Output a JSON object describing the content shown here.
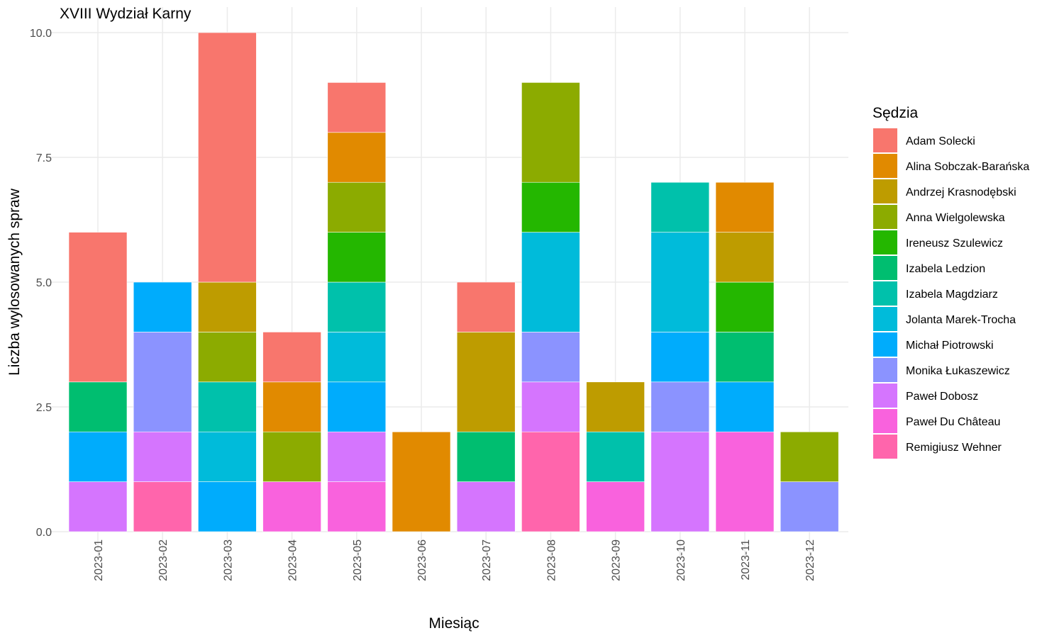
{
  "chart_data": {
    "type": "bar",
    "stacked": true,
    "title": "XVIII Wydział Karny",
    "xlabel": "Miesiąc",
    "ylabel": "Liczba wylosowanych spraw",
    "ylim": [
      0,
      10
    ],
    "yticks": [
      "0.0",
      "2.5",
      "5.0",
      "7.5",
      "10.0"
    ],
    "grid": true,
    "legend_title": "Sędzia",
    "legend_position": "right",
    "categories": [
      "2023-01",
      "2023-02",
      "2023-03",
      "2023-04",
      "2023-05",
      "2023-06",
      "2023-07",
      "2023-08",
      "2023-09",
      "2023-10",
      "2023-11",
      "2023-12"
    ],
    "series": [
      {
        "name": "Adam Solecki",
        "color": "#F8766D",
        "values": [
          3,
          0,
          5,
          1,
          1,
          0,
          1,
          0,
          0,
          0,
          0,
          0
        ]
      },
      {
        "name": "Alina Sobczak-Barańska",
        "color": "#E18A00",
        "values": [
          0,
          0,
          0,
          1,
          1,
          2,
          0,
          0,
          0,
          0,
          1,
          0
        ]
      },
      {
        "name": "Andrzej Krasnodębski",
        "color": "#BE9C00",
        "values": [
          0,
          0,
          1,
          0,
          0,
          0,
          2,
          0,
          1,
          0,
          1,
          0
        ]
      },
      {
        "name": "Anna Wielgolewska",
        "color": "#8CAB00",
        "values": [
          0,
          0,
          1,
          1,
          1,
          0,
          0,
          2,
          0,
          0,
          0,
          1
        ]
      },
      {
        "name": "Ireneusz Szulewicz",
        "color": "#24B700",
        "values": [
          0,
          0,
          0,
          0,
          1,
          0,
          0,
          1,
          0,
          0,
          1,
          0
        ]
      },
      {
        "name": "Izabela Ledzion",
        "color": "#00BE70",
        "values": [
          1,
          0,
          0,
          0,
          0,
          0,
          1,
          0,
          0,
          0,
          1,
          0
        ]
      },
      {
        "name": "Izabela Magdziarz",
        "color": "#00C1AB",
        "values": [
          0,
          0,
          1,
          0,
          1,
          0,
          0,
          0,
          1,
          1,
          0,
          0
        ]
      },
      {
        "name": "Jolanta Marek-Trocha",
        "color": "#00BBDA",
        "values": [
          0,
          0,
          1,
          0,
          1,
          0,
          0,
          2,
          0,
          2,
          0,
          0
        ]
      },
      {
        "name": "Michał Piotrowski",
        "color": "#00ACFC",
        "values": [
          1,
          1,
          1,
          0,
          1,
          0,
          0,
          0,
          0,
          1,
          1,
          0
        ]
      },
      {
        "name": "Monika Łukaszewicz",
        "color": "#8B93FF",
        "values": [
          0,
          2,
          0,
          0,
          0,
          0,
          0,
          1,
          0,
          1,
          0,
          1
        ]
      },
      {
        "name": "Paweł Dobosz",
        "color": "#D575FE",
        "values": [
          1,
          1,
          0,
          0,
          1,
          0,
          1,
          1,
          0,
          2,
          0,
          0
        ]
      },
      {
        "name": "Paweł Du Château",
        "color": "#F962DD",
        "values": [
          0,
          0,
          0,
          1,
          1,
          0,
          0,
          0,
          1,
          0,
          2,
          0
        ]
      },
      {
        "name": "Remigiusz Wehner",
        "color": "#FF65AC",
        "values": [
          0,
          1,
          0,
          0,
          0,
          0,
          0,
          2,
          0,
          0,
          0,
          0
        ]
      }
    ]
  }
}
